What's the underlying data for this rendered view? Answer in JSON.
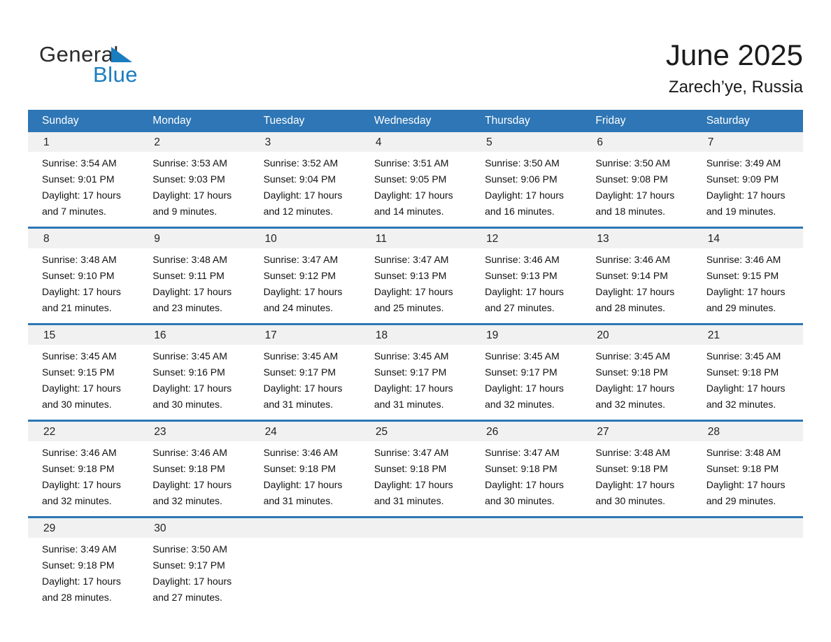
{
  "logo": {
    "general": "General",
    "blue": "Blue",
    "triangle_icon": "logo-flag-triangle"
  },
  "header": {
    "title": "June 2025",
    "location": "Zarech’ye, Russia"
  },
  "colors": {
    "header_bar_blue": "#2e76b5",
    "week_separator_blue": "#2e76b5",
    "day_band_gray": "#f1f1f1",
    "logo_blue": "#1a7dc0",
    "weekday_text": "#ffffff",
    "body_text": "#111111"
  },
  "calendar": {
    "weekdays": [
      "Sunday",
      "Monday",
      "Tuesday",
      "Wednesday",
      "Thursday",
      "Friday",
      "Saturday"
    ],
    "weeks": [
      [
        {
          "day": "1",
          "lines": [
            "Sunrise: 3:54 AM",
            "Sunset: 9:01 PM",
            "Daylight: 17 hours",
            "and 7 minutes."
          ]
        },
        {
          "day": "2",
          "lines": [
            "Sunrise: 3:53 AM",
            "Sunset: 9:03 PM",
            "Daylight: 17 hours",
            "and 9 minutes."
          ]
        },
        {
          "day": "3",
          "lines": [
            "Sunrise: 3:52 AM",
            "Sunset: 9:04 PM",
            "Daylight: 17 hours",
            "and 12 minutes."
          ]
        },
        {
          "day": "4",
          "lines": [
            "Sunrise: 3:51 AM",
            "Sunset: 9:05 PM",
            "Daylight: 17 hours",
            "and 14 minutes."
          ]
        },
        {
          "day": "5",
          "lines": [
            "Sunrise: 3:50 AM",
            "Sunset: 9:06 PM",
            "Daylight: 17 hours",
            "and 16 minutes."
          ]
        },
        {
          "day": "6",
          "lines": [
            "Sunrise: 3:50 AM",
            "Sunset: 9:08 PM",
            "Daylight: 17 hours",
            "and 18 minutes."
          ]
        },
        {
          "day": "7",
          "lines": [
            "Sunrise: 3:49 AM",
            "Sunset: 9:09 PM",
            "Daylight: 17 hours",
            "and 19 minutes."
          ]
        }
      ],
      [
        {
          "day": "8",
          "lines": [
            "Sunrise: 3:48 AM",
            "Sunset: 9:10 PM",
            "Daylight: 17 hours",
            "and 21 minutes."
          ]
        },
        {
          "day": "9",
          "lines": [
            "Sunrise: 3:48 AM",
            "Sunset: 9:11 PM",
            "Daylight: 17 hours",
            "and 23 minutes."
          ]
        },
        {
          "day": "10",
          "lines": [
            "Sunrise: 3:47 AM",
            "Sunset: 9:12 PM",
            "Daylight: 17 hours",
            "and 24 minutes."
          ]
        },
        {
          "day": "11",
          "lines": [
            "Sunrise: 3:47 AM",
            "Sunset: 9:13 PM",
            "Daylight: 17 hours",
            "and 25 minutes."
          ]
        },
        {
          "day": "12",
          "lines": [
            "Sunrise: 3:46 AM",
            "Sunset: 9:13 PM",
            "Daylight: 17 hours",
            "and 27 minutes."
          ]
        },
        {
          "day": "13",
          "lines": [
            "Sunrise: 3:46 AM",
            "Sunset: 9:14 PM",
            "Daylight: 17 hours",
            "and 28 minutes."
          ]
        },
        {
          "day": "14",
          "lines": [
            "Sunrise: 3:46 AM",
            "Sunset: 9:15 PM",
            "Daylight: 17 hours",
            "and 29 minutes."
          ]
        }
      ],
      [
        {
          "day": "15",
          "lines": [
            "Sunrise: 3:45 AM",
            "Sunset: 9:15 PM",
            "Daylight: 17 hours",
            "and 30 minutes."
          ]
        },
        {
          "day": "16",
          "lines": [
            "Sunrise: 3:45 AM",
            "Sunset: 9:16 PM",
            "Daylight: 17 hours",
            "and 30 minutes."
          ]
        },
        {
          "day": "17",
          "lines": [
            "Sunrise: 3:45 AM",
            "Sunset: 9:17 PM",
            "Daylight: 17 hours",
            "and 31 minutes."
          ]
        },
        {
          "day": "18",
          "lines": [
            "Sunrise: 3:45 AM",
            "Sunset: 9:17 PM",
            "Daylight: 17 hours",
            "and 31 minutes."
          ]
        },
        {
          "day": "19",
          "lines": [
            "Sunrise: 3:45 AM",
            "Sunset: 9:17 PM",
            "Daylight: 17 hours",
            "and 32 minutes."
          ]
        },
        {
          "day": "20",
          "lines": [
            "Sunrise: 3:45 AM",
            "Sunset: 9:18 PM",
            "Daylight: 17 hours",
            "and 32 minutes."
          ]
        },
        {
          "day": "21",
          "lines": [
            "Sunrise: 3:45 AM",
            "Sunset: 9:18 PM",
            "Daylight: 17 hours",
            "and 32 minutes."
          ]
        }
      ],
      [
        {
          "day": "22",
          "lines": [
            "Sunrise: 3:46 AM",
            "Sunset: 9:18 PM",
            "Daylight: 17 hours",
            "and 32 minutes."
          ]
        },
        {
          "day": "23",
          "lines": [
            "Sunrise: 3:46 AM",
            "Sunset: 9:18 PM",
            "Daylight: 17 hours",
            "and 32 minutes."
          ]
        },
        {
          "day": "24",
          "lines": [
            "Sunrise: 3:46 AM",
            "Sunset: 9:18 PM",
            "Daylight: 17 hours",
            "and 31 minutes."
          ]
        },
        {
          "day": "25",
          "lines": [
            "Sunrise: 3:47 AM",
            "Sunset: 9:18 PM",
            "Daylight: 17 hours",
            "and 31 minutes."
          ]
        },
        {
          "day": "26",
          "lines": [
            "Sunrise: 3:47 AM",
            "Sunset: 9:18 PM",
            "Daylight: 17 hours",
            "and 30 minutes."
          ]
        },
        {
          "day": "27",
          "lines": [
            "Sunrise: 3:48 AM",
            "Sunset: 9:18 PM",
            "Daylight: 17 hours",
            "and 30 minutes."
          ]
        },
        {
          "day": "28",
          "lines": [
            "Sunrise: 3:48 AM",
            "Sunset: 9:18 PM",
            "Daylight: 17 hours",
            "and 29 minutes."
          ]
        }
      ],
      [
        {
          "day": "29",
          "lines": [
            "Sunrise: 3:49 AM",
            "Sunset: 9:18 PM",
            "Daylight: 17 hours",
            "and 28 minutes."
          ]
        },
        {
          "day": "30",
          "lines": [
            "Sunrise: 3:50 AM",
            "Sunset: 9:17 PM",
            "Daylight: 17 hours",
            "and 27 minutes."
          ]
        },
        null,
        null,
        null,
        null,
        null
      ]
    ]
  }
}
